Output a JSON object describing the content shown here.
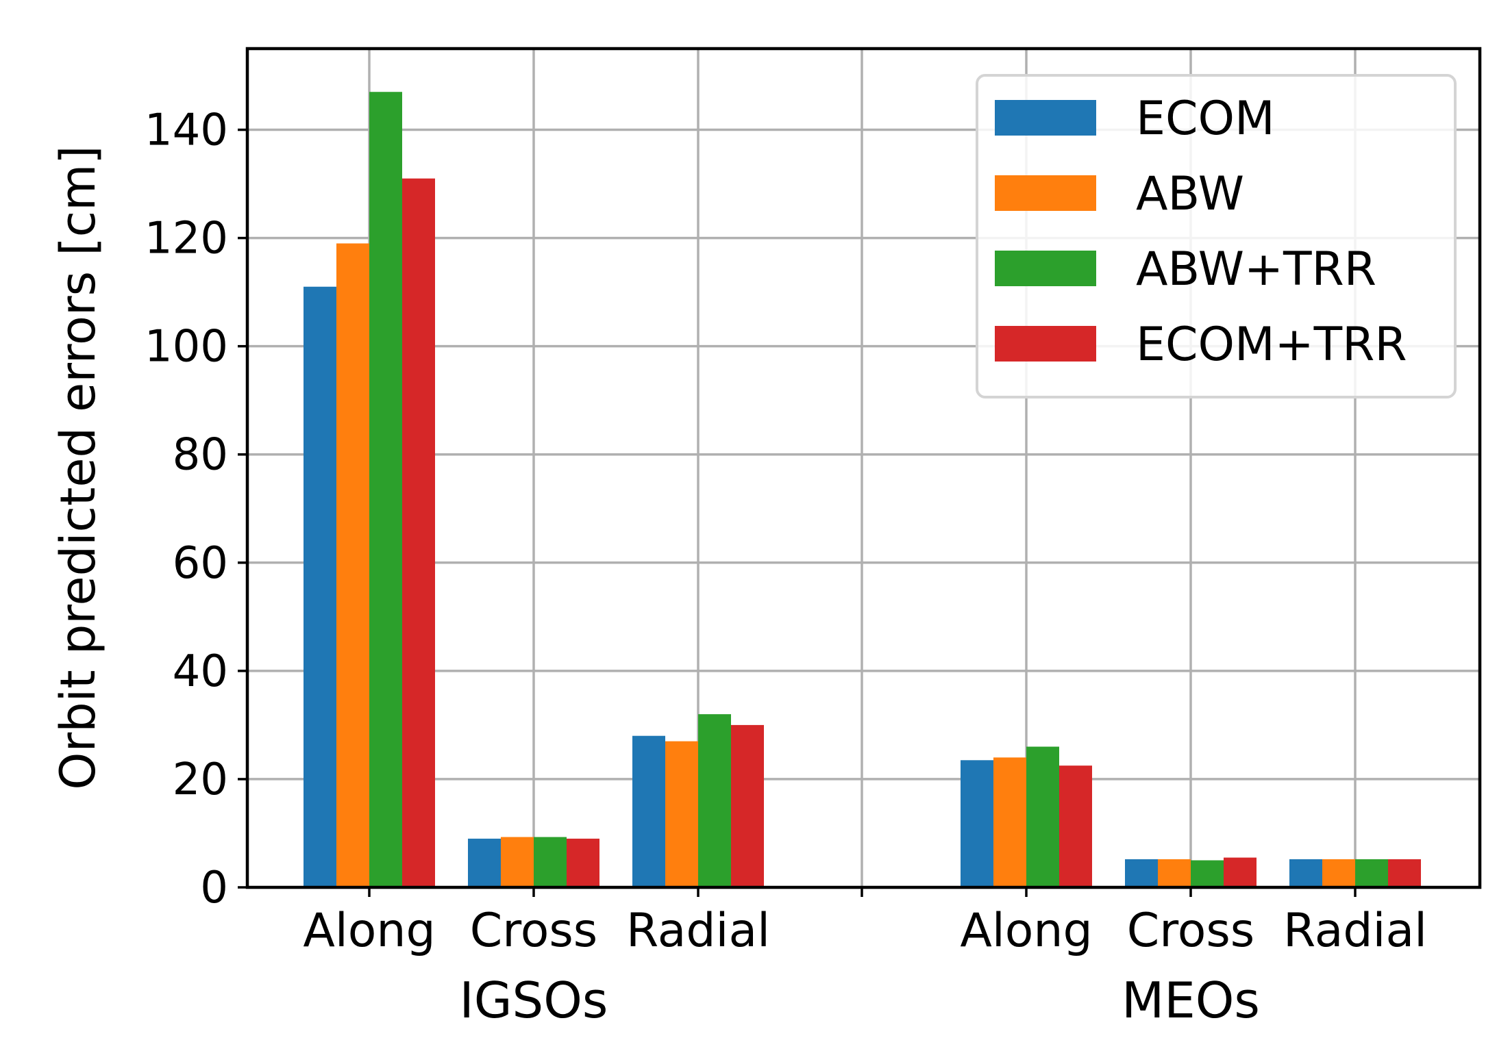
{
  "chart_data": {
    "type": "bar",
    "title": "",
    "xlabel": "",
    "ylabel": "Orbit predicted errors [cm]",
    "ylim": [
      0,
      155
    ],
    "yticks": [
      0,
      20,
      40,
      60,
      80,
      100,
      120,
      140
    ],
    "grid": true,
    "legend_position": "top-right",
    "groups": [
      "IGSOs",
      "MEOs"
    ],
    "categories": [
      "Along",
      "Cross",
      "Radial",
      "Along",
      "Cross",
      "Radial"
    ],
    "series": [
      {
        "name": "ECOM",
        "color": "#1f77b4",
        "values": [
          111,
          9,
          28,
          23.5,
          5.2,
          5.2
        ]
      },
      {
        "name": "ABW",
        "color": "#ff7f0e",
        "values": [
          119,
          9.3,
          27,
          24,
          5.2,
          5.2
        ]
      },
      {
        "name": "ABW+TRR",
        "color": "#2ca02c",
        "values": [
          147,
          9.3,
          32,
          26,
          5,
          5.2
        ]
      },
      {
        "name": "ECOM+TRR",
        "color": "#d62728",
        "values": [
          131,
          9,
          30,
          22.5,
          5.5,
          5.2
        ]
      }
    ]
  }
}
